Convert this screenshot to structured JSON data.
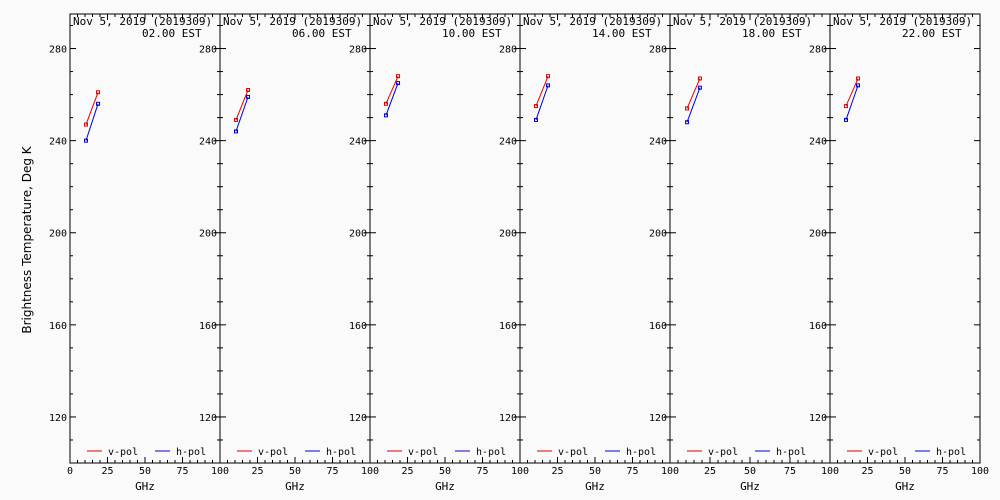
{
  "chart_data": {
    "type": "line",
    "ylabel": "Brightness Temperature, Deg K",
    "xlabel": "GHz",
    "xlim": [
      0,
      100
    ],
    "ylim": [
      100,
      295
    ],
    "yticks": [
      120,
      160,
      200,
      240,
      280
    ],
    "xticks_first": [
      "0",
      "25",
      "50",
      "75",
      "100"
    ],
    "xticks_rest": [
      "25",
      "50",
      "75",
      "100"
    ],
    "legend": [
      "v-pol",
      "h-pol"
    ],
    "legend_placement": "bottom",
    "grid": false,
    "colors": {
      "v": "#e00000",
      "h": "#0000d0"
    },
    "panels": [
      {
        "title_line1": "Nov  5, 2019 (2019309)",
        "title_line2": "02.00 EST",
        "series": [
          {
            "name": "v-pol",
            "x": [
              10.65,
              18.7
            ],
            "y": [
              247,
              261
            ]
          },
          {
            "name": "h-pol",
            "x": [
              10.65,
              18.7
            ],
            "y": [
              240,
              256
            ]
          }
        ]
      },
      {
        "title_line1": "Nov  5, 2019 (2019309)",
        "title_line2": "06.00 EST",
        "series": [
          {
            "name": "v-pol",
            "x": [
              10.65,
              18.7
            ],
            "y": [
              249,
              262
            ]
          },
          {
            "name": "h-pol",
            "x": [
              10.65,
              18.7
            ],
            "y": [
              244,
              259
            ]
          }
        ]
      },
      {
        "title_line1": "Nov  5, 2019 (2019309)",
        "title_line2": "10.00 EST",
        "series": [
          {
            "name": "v-pol",
            "x": [
              10.65,
              18.7
            ],
            "y": [
              256,
              268
            ]
          },
          {
            "name": "h-pol",
            "x": [
              10.65,
              18.7
            ],
            "y": [
              251,
              265
            ]
          }
        ]
      },
      {
        "title_line1": "Nov  5, 2019 (2019309)",
        "title_line2": "14.00 EST",
        "series": [
          {
            "name": "v-pol",
            "x": [
              10.65,
              18.7
            ],
            "y": [
              255,
              268
            ]
          },
          {
            "name": "h-pol",
            "x": [
              10.65,
              18.7
            ],
            "y": [
              249,
              264
            ]
          }
        ]
      },
      {
        "title_line1": "Nov  5, 2019 (2019309)",
        "title_line2": "18.00 EST",
        "series": [
          {
            "name": "v-pol",
            "x": [
              10.65,
              18.7
            ],
            "y": [
              254,
              267
            ]
          },
          {
            "name": "h-pol",
            "x": [
              10.65,
              18.7
            ],
            "y": [
              248,
              263
            ]
          }
        ]
      },
      {
        "title_line1": "Nov  5, 2019 (2019309)",
        "title_line2": "22.00 EST",
        "series": [
          {
            "name": "v-pol",
            "x": [
              10.65,
              18.7
            ],
            "y": [
              255,
              267
            ]
          },
          {
            "name": "h-pol",
            "x": [
              10.65,
              18.7
            ],
            "y": [
              249,
              264
            ]
          }
        ]
      }
    ]
  }
}
